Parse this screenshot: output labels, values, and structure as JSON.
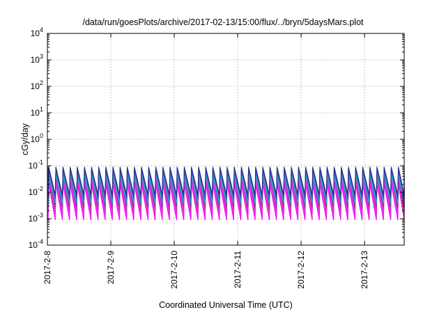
{
  "chart_data": {
    "type": "line",
    "title": "/data/run/goesPlots/archive/2017-02-13/15:00/flux/../bryn/5daysMars.plot",
    "xlabel": "Coordinated Universal Time (UTC)",
    "ylabel": "cGy/day",
    "y_scale": "log",
    "ylim": [
      0.0001,
      10000
    ],
    "y_ticks": [
      {
        "value": 0.0001,
        "mantissa": "10",
        "exponent": "-4"
      },
      {
        "value": 0.001,
        "mantissa": "10",
        "exponent": "-3"
      },
      {
        "value": 0.01,
        "mantissa": "10",
        "exponent": "-2"
      },
      {
        "value": 0.1,
        "mantissa": "10",
        "exponent": "-1"
      },
      {
        "value": 1,
        "mantissa": "10",
        "exponent": "0"
      },
      {
        "value": 10,
        "mantissa": "10",
        "exponent": "1"
      },
      {
        "value": 100,
        "mantissa": "10",
        "exponent": "2"
      },
      {
        "value": 1000,
        "mantissa": "10",
        "exponent": "3"
      },
      {
        "value": 10000,
        "mantissa": "10",
        "exponent": "4"
      }
    ],
    "xlim": [
      "2017-02-08T00:00",
      "2017-02-13T15:00"
    ],
    "x_ticks": [
      {
        "date": "2017-02-08T00:00",
        "label": "2017-2-8"
      },
      {
        "date": "2017-02-09T00:00",
        "label": "2017-2-9"
      },
      {
        "date": "2017-02-10T00:00",
        "label": "2017-2-10"
      },
      {
        "date": "2017-02-11T00:00",
        "label": "2017-2-11"
      },
      {
        "date": "2017-02-12T00:00",
        "label": "2017-2-12"
      },
      {
        "date": "2017-02-13T00:00",
        "label": "2017-2-13"
      }
    ],
    "grid": true,
    "legend": "none",
    "sawtooth": {
      "period_hours": 2.7,
      "first_peak": "2017-02-08T00:30"
    },
    "series": [
      {
        "color": "#ff00ff",
        "peak": 0.02,
        "trough": 0.0009
      },
      {
        "color": "#e81de8",
        "peak": 0.028,
        "trough": 0.0013
      },
      {
        "color": "#cc33cc",
        "peak": 0.04,
        "trough": 0.0018
      },
      {
        "color": "#a03a9a",
        "peak": 0.05,
        "trough": 0.0025
      },
      {
        "color": "#7a3f8f",
        "peak": 0.06,
        "trough": 0.0032
      },
      {
        "color": "#00c8c8",
        "peak": 0.045,
        "trough": 0.004
      },
      {
        "color": "#2f7fd8",
        "peak": 0.07,
        "trough": 0.005
      },
      {
        "color": "#4a3fae",
        "peak": 0.08,
        "trough": 0.006
      },
      {
        "color": "#2a2a8a",
        "peak": 0.09,
        "trough": 0.008
      }
    ]
  }
}
